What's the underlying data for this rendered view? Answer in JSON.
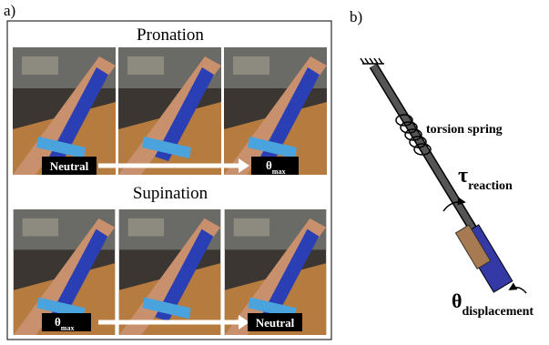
{
  "panel_a": {
    "label": "a)",
    "pronation": {
      "title": "Pronation",
      "start": "Neutral",
      "end_symbol": "θ",
      "end_subscript": "max"
    },
    "supination": {
      "title": "Supination",
      "start_symbol": "θ",
      "start_subscript": "max",
      "end": "Neutral"
    }
  },
  "panel_b": {
    "label": "b)",
    "spring_label": "torsion spring",
    "torque_symbol": "τ",
    "torque_subscript": "reaction",
    "angle_symbol": "θ",
    "angle_subscript": "displacement"
  }
}
